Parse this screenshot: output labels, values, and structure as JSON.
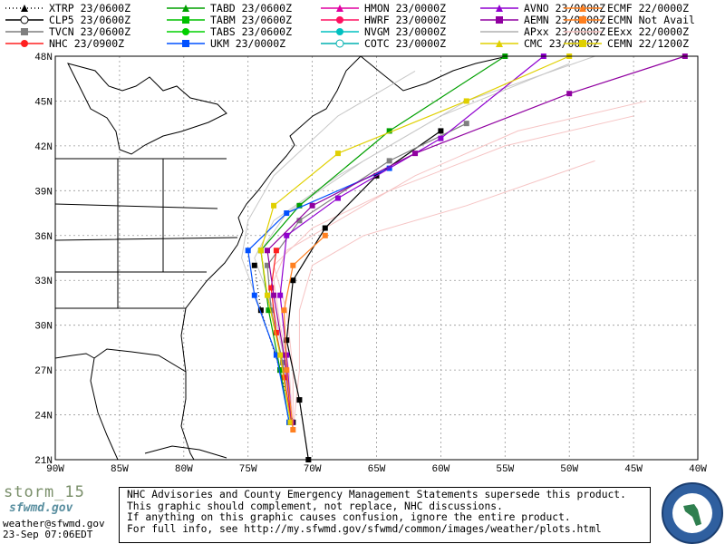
{
  "legend": [
    {
      "label": "XTRP 23/0600Z",
      "color": "#000000",
      "marker": "triangle",
      "dotted": true
    },
    {
      "label": "CLP5 23/0600Z",
      "color": "#000000",
      "marker": "circle-digit",
      "dotted": false
    },
    {
      "label": "TVCN 23/0600Z",
      "color": "#7f7f7f",
      "marker": "square",
      "dotted": false
    },
    {
      "label": "NHC 23/0900Z",
      "color": "#ff2020",
      "marker": "circle",
      "dotted": false
    },
    {
      "label": "TABD 23/0600Z",
      "color": "#00a000",
      "marker": "triangle",
      "dotted": false
    },
    {
      "label": "TABM 23/0600Z",
      "color": "#00c000",
      "marker": "square",
      "dotted": false
    },
    {
      "label": "TABS 23/0600Z",
      "color": "#00d000",
      "marker": "circle",
      "dotted": false
    },
    {
      "label": "UKM  23/0000Z",
      "color": "#0050ff",
      "marker": "square",
      "dotted": false
    },
    {
      "label": "HMON 23/0000Z",
      "color": "#e000a0",
      "marker": "triangle",
      "dotted": false
    },
    {
      "label": "HWRF 23/0000Z",
      "color": "#ff1060",
      "marker": "circle",
      "dotted": false
    },
    {
      "label": "NVGM 23/0000Z",
      "color": "#00c0c0",
      "marker": "circle",
      "dotted": false
    },
    {
      "label": "COTC 23/0000Z",
      "color": "#00b0b0",
      "marker": "circle-digit",
      "dotted": false
    },
    {
      "label": "AVNO 23/0000Z",
      "color": "#9000d0",
      "marker": "triangle",
      "dotted": false
    },
    {
      "label": "AEMN 23/0000Z",
      "color": "#9000a0",
      "marker": "square",
      "dotted": false
    },
    {
      "label": "APxx 23/0000Z",
      "color": "#b0b0b0",
      "marker": "none",
      "dotted": false
    },
    {
      "label": "CMC  23/0000Z",
      "color": "#e0d000",
      "marker": "triangle",
      "dotted": false
    },
    {
      "label": "ECMF 22/0000Z",
      "color": "#ff8020",
      "marker": "triangle",
      "dotted": false
    },
    {
      "label": "ECMN Not Avail",
      "color": "#ff8020",
      "marker": "square",
      "dotted": false
    },
    {
      "label": "EExx 22/0000Z",
      "color": "#f4c0c0",
      "marker": "none",
      "dotted": false
    },
    {
      "label": "CEMN 22/1200Z",
      "color": "#e0d000",
      "marker": "square",
      "dotted": false
    }
  ],
  "map": {
    "lon_range": [
      -90,
      -40
    ],
    "lat_range": [
      21,
      48
    ],
    "lon_ticks": [
      "90W",
      "85W",
      "80W",
      "75W",
      "70W",
      "65W",
      "60W",
      "55W",
      "50W",
      "45W",
      "40W"
    ],
    "lat_ticks": [
      "21N",
      "24N",
      "27N",
      "30N",
      "33N",
      "36N",
      "39N",
      "42N",
      "45N",
      "48N"
    ],
    "grid": "dotted"
  },
  "footer": {
    "storm_name": "storm_15",
    "logo_text": "sfwmd.gov",
    "email": "weather@sfwmd.gov",
    "timestamp": "23-Sep 07:06EDT",
    "disclaimer": [
      "NHC Advisories and County Emergency Management Statements supersede this product.",
      "This graphic should complement, not replace, NHC discussions.",
      "If anything on this graphic causes confusion, ignore the entire product.",
      "For full info, see  http://my.sfwmd.gov/sfwmd/common/images/weather/plots.html"
    ]
  }
}
